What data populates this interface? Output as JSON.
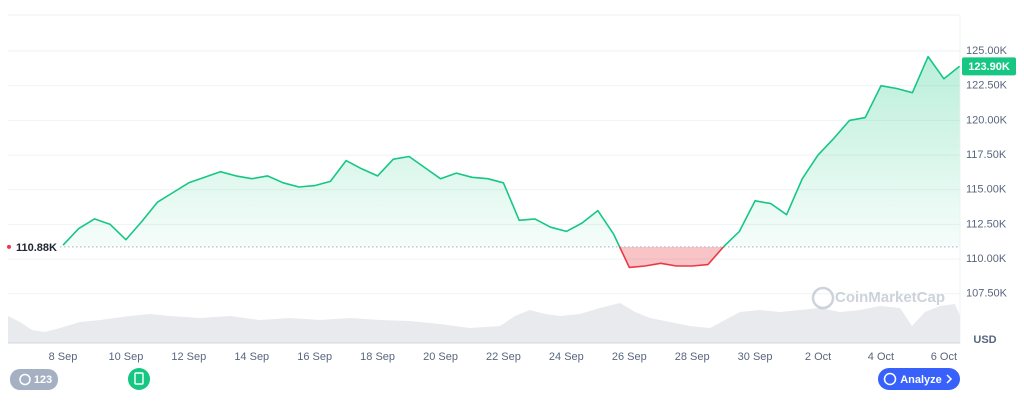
{
  "chart_data": {
    "type": "line",
    "categories": [
      "8 Sep",
      null,
      null,
      null,
      "10 Sep",
      null,
      null,
      null,
      "12 Sep",
      null,
      null,
      null,
      "14 Sep",
      null,
      null,
      null,
      "16 Sep",
      null,
      null,
      null,
      "18 Sep",
      null,
      null,
      null,
      "20 Sep",
      null,
      null,
      null,
      "22 Sep",
      null,
      null,
      null,
      "24 Sep",
      null,
      null,
      null,
      "26 Sep",
      null,
      null,
      null,
      "28 Sep",
      null,
      null,
      null,
      "30 Sep",
      null,
      null,
      null,
      "2 Oct",
      null,
      null,
      null,
      "4 Oct",
      null,
      null,
      null,
      "6 Oct",
      null
    ],
    "values": [
      111000,
      112200,
      112900,
      112500,
      111400,
      112700,
      114100,
      114800,
      115500,
      115900,
      116300,
      116000,
      115800,
      116000,
      115500,
      115200,
      115300,
      115600,
      117100,
      116500,
      116000,
      117200,
      117400,
      116600,
      115800,
      116200,
      115900,
      115800,
      115500,
      112800,
      112900,
      112300,
      112000,
      112600,
      113500,
      111800,
      109400,
      109500,
      109700,
      109500,
      109500,
      109600,
      110900,
      112000,
      114200,
      114000,
      113200,
      115800,
      117500,
      118700,
      120000,
      120200,
      122500,
      122300,
      122000,
      124600,
      123000,
      123900
    ],
    "color_up": "#16c784",
    "color_down": "#ea3943",
    "ylim": [
      103950,
      127600
    ],
    "yticks": [
      {
        "value": 107500,
        "label": "107.50K"
      },
      {
        "value": 110000,
        "label": "110.00K"
      },
      {
        "value": 112500,
        "label": "112.50K"
      },
      {
        "value": 115000,
        "label": "115.00K"
      },
      {
        "value": 117500,
        "label": "117.50K"
      },
      {
        "value": 120000,
        "label": "120.00K"
      },
      {
        "value": 122500,
        "label": "122.50K"
      },
      {
        "value": 125000,
        "label": "125.00K"
      }
    ],
    "grid": true,
    "baseline": {
      "value": 110880,
      "label": "110.88K"
    },
    "current": {
      "value": 123900,
      "label": "123.90K"
    },
    "currency": "USD",
    "watermark": "CoinMarketCap"
  },
  "ui": {
    "history_badge": "123",
    "analyze_button": "Analyze"
  }
}
